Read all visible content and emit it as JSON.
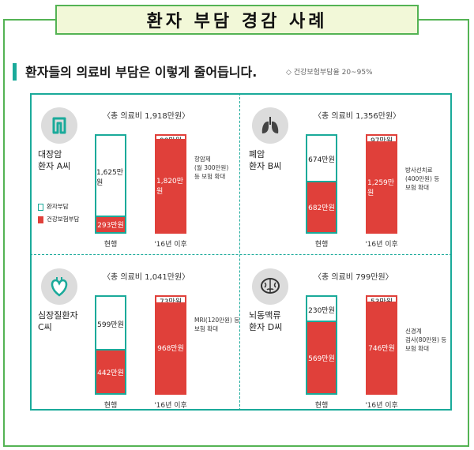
{
  "title": "환자 부담 경감 사례",
  "heading": "환자들의 의료비 부담은 이렇게 줄어듭니다.",
  "heading_note": "◇ 건강보험부담율 20~95%",
  "legend": {
    "patient": "환자부담",
    "insurance": "건강보험부담"
  },
  "colors": {
    "teal": "#1aaa9a",
    "red": "#e0403a",
    "green": "#54b354"
  },
  "panels": [
    {
      "patient_line1": "대장암",
      "patient_line2": "환자 A씨",
      "icon": "intestine-icon",
      "total": "〈총 의료비 1,918만원〉",
      "current_patient": "1,625만원",
      "current_insurance": "293만원",
      "after_patient": "98만원",
      "after_insurance": "1,820만원",
      "label_current": "현행",
      "label_after": "'16년 이후",
      "note1": "항암제",
      "note2": "(월 300만원)",
      "note3": "등 보험 확대",
      "cur_frac": 0.153,
      "after_frac": 0.949
    },
    {
      "patient_line1": "폐암",
      "patient_line2": "환자 B씨",
      "icon": "lungs-icon",
      "total": "〈총 의료비 1,356만원〉",
      "current_patient": "674만원",
      "current_insurance": "682만원",
      "after_patient": "97만원",
      "after_insurance": "1,259만원",
      "label_current": "현행",
      "label_after": "'16년 이후",
      "note1": "방사선치료",
      "note2": "(400만원) 등",
      "note3": "보험 확대",
      "cur_frac": 0.503,
      "after_frac": 0.928
    },
    {
      "patient_line1": "심장질환자",
      "patient_line2": "C씨",
      "icon": "heart-icon",
      "total": "〈총 의료비 1,041만원〉",
      "current_patient": "599만원",
      "current_insurance": "442만원",
      "after_patient": "73만원",
      "after_insurance": "968만원",
      "label_current": "현행",
      "label_after": "'16년 이후",
      "note1": "MRI(120만원) 등",
      "note2": "보험 확대",
      "note3": "",
      "cur_frac": 0.425,
      "after_frac": 0.93
    },
    {
      "patient_line1": "뇌동맥류",
      "patient_line2": "환자 D씨",
      "icon": "brain-icon",
      "total": "〈총 의료비 799만원〉",
      "current_patient": "230만원",
      "current_insurance": "569만원",
      "after_patient": "53만원",
      "after_insurance": "746만원",
      "label_current": "현행",
      "label_after": "'16년 이후",
      "note1": "신경계",
      "note2": "검사(80만원) 등",
      "note3": "보험 확대",
      "cur_frac": 0.712,
      "after_frac": 0.934
    }
  ]
}
